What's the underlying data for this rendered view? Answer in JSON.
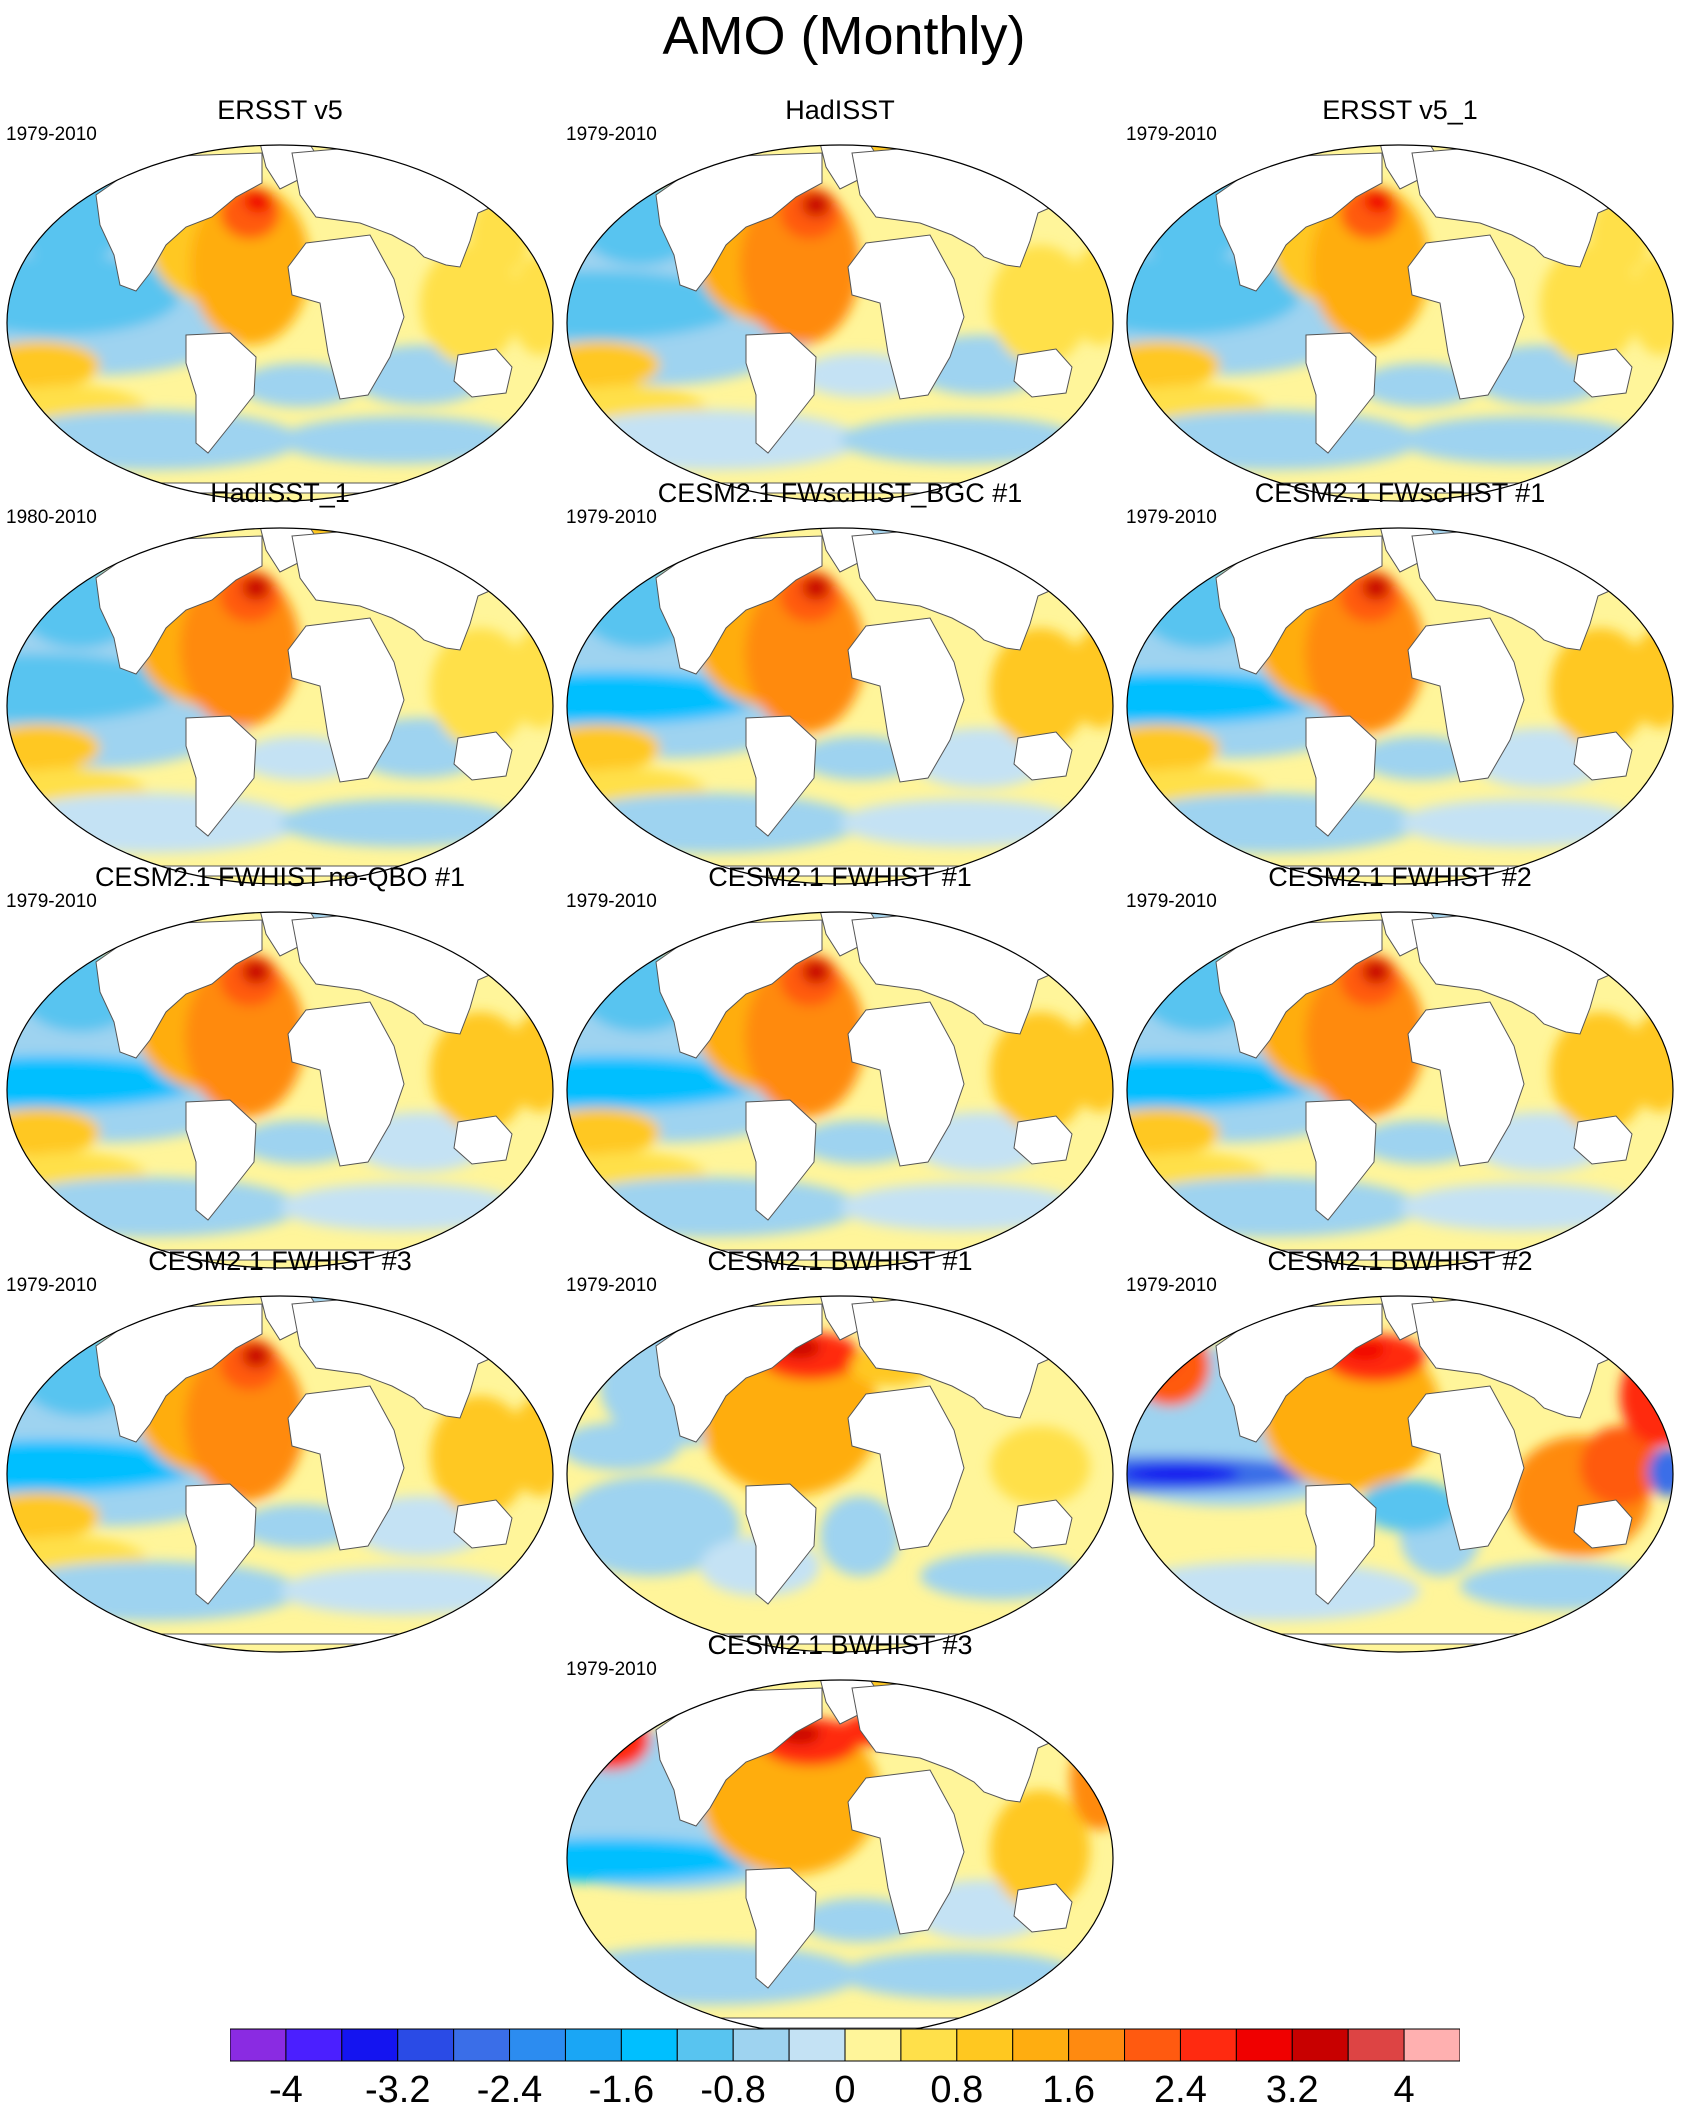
{
  "title": "AMO (Monthly)",
  "panels": [
    {
      "title": "ERSST v5",
      "period": "1979-2010",
      "style": "obs"
    },
    {
      "title": "HadISST",
      "period": "1979-2010",
      "style": "obs2"
    },
    {
      "title": "ERSST v5_1",
      "period": "1979-2010",
      "style": "obs"
    },
    {
      "title": "HadISST_1",
      "period": "1980-2010",
      "style": "obs2"
    },
    {
      "title": "CESM2.1 FWscHIST_BGC #1",
      "period": "1979-2010",
      "style": "fw"
    },
    {
      "title": "CESM2.1 FWscHIST #1",
      "period": "1979-2010",
      "style": "fw"
    },
    {
      "title": "CESM2.1 FWHIST no-QBO #1",
      "period": "1979-2010",
      "style": "fw"
    },
    {
      "title": "CESM2.1 FWHIST #1",
      "period": "1979-2010",
      "style": "fw"
    },
    {
      "title": "CESM2.1 FWHIST #2",
      "period": "1979-2010",
      "style": "fw"
    },
    {
      "title": "CESM2.1 FWHIST #3",
      "period": "1979-2010",
      "style": "fw"
    },
    {
      "title": "CESM2.1 BWHIST #1",
      "period": "1979-2010",
      "style": "bw1"
    },
    {
      "title": "CESM2.1 BWHIST #2",
      "period": "1979-2010",
      "style": "bw2"
    },
    {
      "title": "CESM2.1 BWHIST #3",
      "period": "1979-2010",
      "style": "bw3"
    }
  ],
  "colorbar": {
    "min": -4.4,
    "max": 4.4,
    "step": 0.4,
    "tick_labels": [
      "-4",
      "-3.2",
      "-2.4",
      "-1.6",
      "-0.8",
      "0",
      "0.8",
      "1.6",
      "2.4",
      "3.2",
      "4"
    ],
    "tick_values": [
      -4,
      -3.2,
      -2.4,
      -1.6,
      -0.8,
      0,
      0.8,
      1.6,
      2.4,
      3.2,
      4
    ],
    "colors": [
      "#8a2be2",
      "#4b1fff",
      "#1414f0",
      "#2a4be6",
      "#3a6ee8",
      "#2c8cf0",
      "#1aa6f5",
      "#00bfff",
      "#58c4f0",
      "#9ed3f0",
      "#c4e2f4",
      "#fff59a",
      "#ffe04a",
      "#ffc820",
      "#ffad10",
      "#ff8a10",
      "#ff5a10",
      "#ff2a10",
      "#f00000",
      "#c80000",
      "#dd4444",
      "#ffb0b0"
    ]
  }
}
